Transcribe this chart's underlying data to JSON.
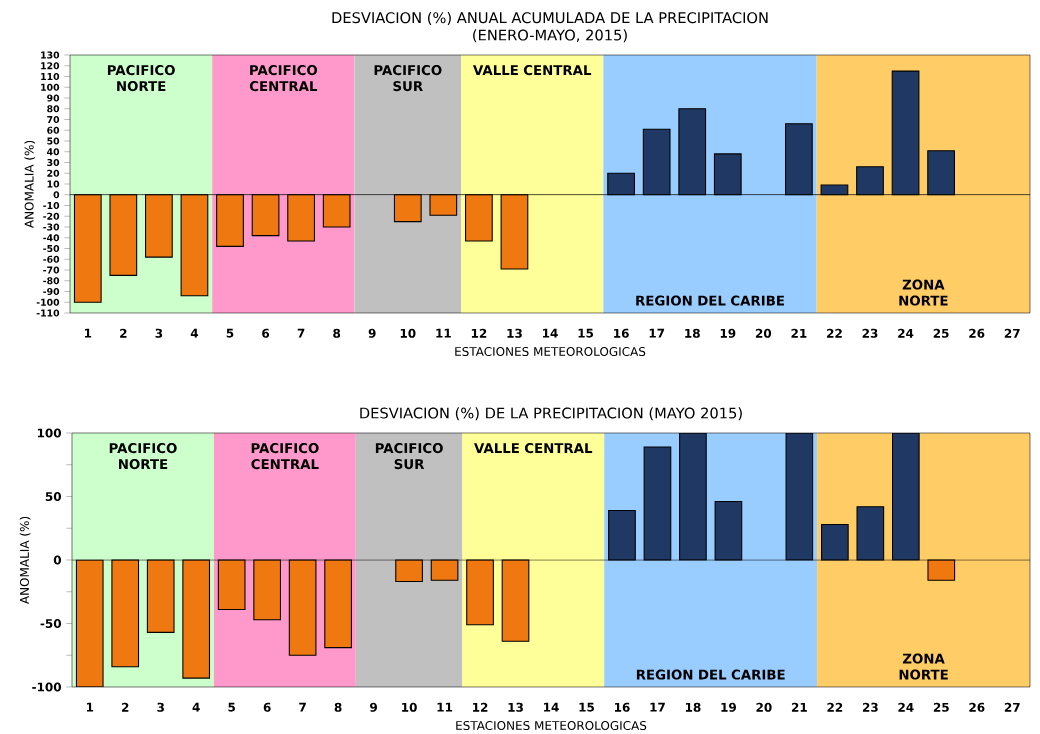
{
  "chart_data": [
    {
      "type": "bar",
      "title": "DESVIACION (%)  ANUAL ACUMULADA DE LA PRECIPITACION",
      "subtitle": "(ENERO-MAYO, 2015)",
      "xlabel": "ESTACIONES METEOROLOGICAS",
      "ylabel": "ANOMALIA (%)",
      "x": [
        1,
        2,
        3,
        4,
        5,
        6,
        7,
        8,
        10,
        11,
        12,
        13,
        16,
        17,
        18,
        19,
        21,
        22,
        23,
        24,
        25
      ],
      "values": [
        -100,
        -75,
        -58,
        -94,
        -48,
        -38,
        -43,
        -30,
        -25,
        -19,
        -43,
        -69,
        20,
        61,
        80,
        38,
        66,
        9,
        26,
        115,
        41
      ],
      "colors": [
        "#f07810",
        "#f07810",
        "#f07810",
        "#f07810",
        "#f07810",
        "#f07810",
        "#f07810",
        "#f07810",
        "#f07810",
        "#f07810",
        "#f07810",
        "#f07810",
        "#1f3864",
        "#1f3864",
        "#1f3864",
        "#1f3864",
        "#1f3864",
        "#1f3864",
        "#1f3864",
        "#1f3864",
        "#1f3864"
      ],
      "xlim": [
        0.5,
        27.5
      ],
      "xticks": [
        1,
        2,
        3,
        4,
        5,
        6,
        7,
        8,
        9,
        10,
        11,
        12,
        13,
        14,
        15,
        16,
        17,
        18,
        19,
        20,
        21,
        22,
        23,
        24,
        25,
        26,
        27
      ],
      "ylim": [
        -110,
        130
      ],
      "yticks": [
        -110,
        -100,
        -90,
        -80,
        -70,
        -60,
        -50,
        -40,
        -30,
        -20,
        -10,
        0,
        10,
        20,
        30,
        40,
        50,
        60,
        70,
        80,
        90,
        100,
        110,
        120,
        130
      ],
      "ref_lines": [
        {
          "axis": "y",
          "value": 0,
          "color": "#000000"
        }
      ],
      "bands": [
        {
          "axis": "x",
          "from": 0.5,
          "to": 4.5,
          "label": "PACIFICO NORTE",
          "color": "#ccffcc"
        },
        {
          "axis": "x",
          "from": 4.5,
          "to": 8.5,
          "label": "PACIFICO CENTRAL",
          "color": "#ff99cc"
        },
        {
          "axis": "x",
          "from": 8.5,
          "to": 11.5,
          "label": "PACIFICO SUR",
          "color": "#c0c0c0"
        },
        {
          "axis": "x",
          "from": 11.5,
          "to": 15.5,
          "label": "VALLE CENTRAL",
          "color": "#ffff99"
        },
        {
          "axis": "x",
          "from": 15.5,
          "to": 21.5,
          "label": "REGION DEL CARIBE",
          "color": "#99ccff"
        },
        {
          "axis": "x",
          "from": 21.5,
          "to": 27.5,
          "label": "ZONA NORTE",
          "color": "#ffcc66"
        }
      ]
    },
    {
      "type": "bar",
      "title": "DESVIACION (%) DE LA PRECIPITACION (MAYO 2015)",
      "xlabel": "ESTACIONES METEOROLOGICAS",
      "ylabel": "ANOMALIA (%)",
      "x": [
        1,
        2,
        3,
        4,
        5,
        6,
        7,
        8,
        10,
        11,
        12,
        13,
        16,
        17,
        18,
        19,
        21,
        22,
        23,
        24,
        25
      ],
      "values": [
        -100,
        -84,
        -57,
        -93,
        -39,
        -47,
        -75,
        -69,
        -17,
        -16,
        -51,
        -64,
        39,
        89,
        100,
        46,
        100,
        28,
        42,
        100,
        -16
      ],
      "colors": [
        "#f07810",
        "#f07810",
        "#f07810",
        "#f07810",
        "#f07810",
        "#f07810",
        "#f07810",
        "#f07810",
        "#f07810",
        "#f07810",
        "#f07810",
        "#f07810",
        "#1f3864",
        "#1f3864",
        "#1f3864",
        "#1f3864",
        "#1f3864",
        "#1f3864",
        "#1f3864",
        "#1f3864",
        "#f07810"
      ],
      "xlim": [
        0.5,
        27.5
      ],
      "xticks": [
        1,
        2,
        3,
        4,
        5,
        6,
        7,
        8,
        9,
        10,
        11,
        12,
        13,
        14,
        15,
        16,
        17,
        18,
        19,
        20,
        21,
        22,
        23,
        24,
        25,
        26,
        27
      ],
      "ylim": [
        -100,
        100
      ],
      "yticks": [
        -100,
        {
          "value": -75,
          "label": null
        },
        -50,
        {
          "value": -25,
          "label": null
        },
        0,
        {
          "value": 25,
          "label": null
        },
        50,
        {
          "value": 75,
          "label": null
        },
        100
      ],
      "ref_lines": [
        {
          "axis": "y",
          "value": 0,
          "color": "#000000"
        }
      ],
      "bands": [
        {
          "axis": "x",
          "from": 0.5,
          "to": 4.5,
          "label": "PACIFICO NORTE",
          "color": "#ccffcc"
        },
        {
          "axis": "x",
          "from": 4.5,
          "to": 8.5,
          "label": "PACIFICO CENTRAL",
          "color": "#ff99cc"
        },
        {
          "axis": "x",
          "from": 8.5,
          "to": 11.5,
          "label": "PACIFICO SUR",
          "color": "#c0c0c0"
        },
        {
          "axis": "x",
          "from": 11.5,
          "to": 15.5,
          "label": "VALLE CENTRAL",
          "color": "#ffff99"
        },
        {
          "axis": "x",
          "from": 15.5,
          "to": 21.5,
          "label": "REGION DEL CARIBE",
          "color": "#99ccff"
        },
        {
          "axis": "x",
          "from": 21.5,
          "to": 27.5,
          "label": "ZONA NORTE",
          "color": "#ffcc66"
        }
      ]
    }
  ]
}
